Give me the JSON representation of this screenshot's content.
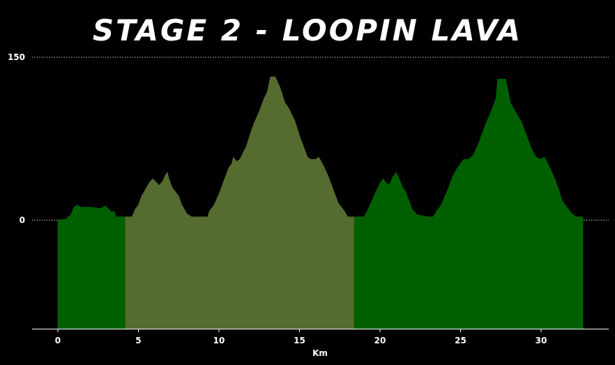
{
  "chart_data": {
    "type": "area",
    "title": "STAGE 2 - LOOPIN LAVA",
    "xlabel": "Km",
    "ylabel": "",
    "xlim": [
      -1.6,
      34.2
    ],
    "ylim": [
      -100,
      150
    ],
    "xticks": [
      0,
      5,
      10,
      15,
      20,
      25,
      30
    ],
    "yticks": [
      0,
      150
    ],
    "grid": "dotted horizontal at 0 and 150",
    "base_y": -100,
    "colors": {
      "background": "#000000",
      "green": "#006000",
      "olive": "#566b30",
      "text": "#ffffff",
      "grid": "#c8c8c8"
    },
    "segments": [
      {
        "x_start": 0,
        "x_end": 4.2,
        "color": "#006000"
      },
      {
        "x_start": 4.2,
        "x_end": 18.4,
        "color": "#566b30"
      },
      {
        "x_start": 18.4,
        "x_end": 32.6,
        "color": "#006000"
      }
    ],
    "profile": [
      [
        0,
        0
      ],
      [
        0.5,
        1
      ],
      [
        0.8,
        5
      ],
      [
        1.0,
        12
      ],
      [
        1.2,
        14
      ],
      [
        1.4,
        12
      ],
      [
        2.0,
        12
      ],
      [
        2.5,
        11
      ],
      [
        2.7,
        11
      ],
      [
        2.8,
        12
      ],
      [
        3.0,
        13
      ],
      [
        3.1,
        11
      ],
      [
        3.3,
        8
      ],
      [
        3.5,
        8
      ],
      [
        3.6,
        3
      ],
      [
        4.2,
        3
      ],
      [
        4.6,
        3
      ],
      [
        4.8,
        10
      ],
      [
        5.0,
        14
      ],
      [
        5.2,
        22
      ],
      [
        5.5,
        30
      ],
      [
        5.7,
        35
      ],
      [
        5.9,
        38
      ],
      [
        6.1,
        35
      ],
      [
        6.3,
        32
      ],
      [
        6.5,
        36
      ],
      [
        6.7,
        42
      ],
      [
        6.8,
        44
      ],
      [
        6.9,
        38
      ],
      [
        7.1,
        30
      ],
      [
        7.3,
        26
      ],
      [
        7.5,
        22
      ],
      [
        7.7,
        14
      ],
      [
        8.0,
        6
      ],
      [
        8.3,
        3
      ],
      [
        9.0,
        3
      ],
      [
        9.3,
        3
      ],
      [
        9.4,
        8
      ],
      [
        9.7,
        14
      ],
      [
        10.0,
        24
      ],
      [
        10.3,
        36
      ],
      [
        10.6,
        48
      ],
      [
        10.8,
        52
      ],
      [
        10.9,
        58
      ],
      [
        11.1,
        54
      ],
      [
        11.3,
        56
      ],
      [
        11.5,
        62
      ],
      [
        11.7,
        68
      ],
      [
        12.0,
        82
      ],
      [
        12.2,
        90
      ],
      [
        12.5,
        100
      ],
      [
        12.8,
        112
      ],
      [
        13.0,
        118
      ],
      [
        13.2,
        132
      ],
      [
        13.5,
        132
      ],
      [
        13.8,
        122
      ],
      [
        14.1,
        108
      ],
      [
        14.3,
        104
      ],
      [
        14.7,
        92
      ],
      [
        15.0,
        78
      ],
      [
        15.3,
        66
      ],
      [
        15.5,
        58
      ],
      [
        15.7,
        56
      ],
      [
        16.0,
        56
      ],
      [
        16.2,
        58
      ],
      [
        16.5,
        50
      ],
      [
        16.8,
        40
      ],
      [
        17.1,
        28
      ],
      [
        17.4,
        16
      ],
      [
        17.6,
        12
      ],
      [
        17.8,
        8
      ],
      [
        18.0,
        3
      ],
      [
        18.4,
        3
      ],
      [
        19.0,
        3
      ],
      [
        19.2,
        8
      ],
      [
        19.5,
        18
      ],
      [
        19.8,
        28
      ],
      [
        20.0,
        34
      ],
      [
        20.2,
        38
      ],
      [
        20.4,
        34
      ],
      [
        20.6,
        33
      ],
      [
        20.8,
        40
      ],
      [
        21.0,
        44
      ],
      [
        21.2,
        38
      ],
      [
        21.4,
        30
      ],
      [
        21.6,
        26
      ],
      [
        21.8,
        18
      ],
      [
        22.0,
        10
      ],
      [
        22.3,
        5
      ],
      [
        23.0,
        3
      ],
      [
        23.3,
        3
      ],
      [
        23.5,
        8
      ],
      [
        23.8,
        14
      ],
      [
        24.2,
        28
      ],
      [
        24.5,
        40
      ],
      [
        24.8,
        48
      ],
      [
        25.0,
        52
      ],
      [
        25.2,
        56
      ],
      [
        25.5,
        56
      ],
      [
        25.8,
        60
      ],
      [
        26.1,
        70
      ],
      [
        26.3,
        78
      ],
      [
        26.6,
        90
      ],
      [
        26.9,
        100
      ],
      [
        27.2,
        112
      ],
      [
        27.3,
        130
      ],
      [
        27.8,
        130
      ],
      [
        28.1,
        108
      ],
      [
        28.4,
        100
      ],
      [
        28.8,
        90
      ],
      [
        29.1,
        78
      ],
      [
        29.4,
        66
      ],
      [
        29.7,
        58
      ],
      [
        30.0,
        56
      ],
      [
        30.2,
        58
      ],
      [
        30.5,
        50
      ],
      [
        30.8,
        40
      ],
      [
        31.1,
        28
      ],
      [
        31.3,
        18
      ],
      [
        31.5,
        14
      ],
      [
        31.7,
        10
      ],
      [
        31.9,
        6
      ],
      [
        32.2,
        3
      ],
      [
        32.6,
        3
      ]
    ]
  }
}
